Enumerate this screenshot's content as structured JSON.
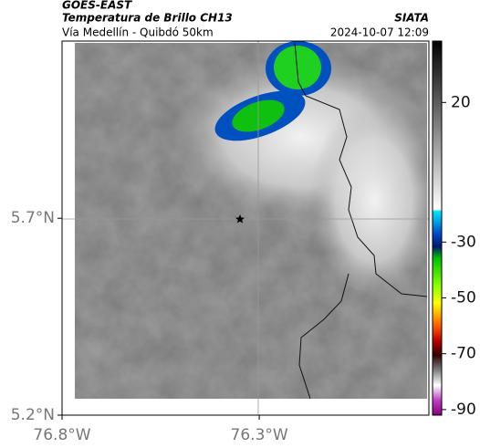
{
  "header": {
    "source": "GOES-EAST",
    "title": "Temperatura de Brillo CH13",
    "subtitle": "Vía Medellín - Quibdó 50km",
    "brand": "SIATA",
    "timestamp": "2024-10-07 12:09"
  },
  "map": {
    "ylim": [
      5.2,
      6.15
    ],
    "xlim": [
      -76.8,
      -75.87
    ],
    "yticks": [
      {
        "value": 5.7,
        "label": "5.7°N"
      },
      {
        "value": 5.2,
        "label": "5.2°N"
      }
    ],
    "xticks": [
      {
        "value": -76.8,
        "label": "76.8°W"
      },
      {
        "value": -76.3,
        "label": "76.3°W"
      }
    ]
  },
  "colorbar": {
    "lim": [
      -92,
      42
    ],
    "ticks": [
      20,
      -30,
      -50,
      -70,
      -90
    ]
  }
}
